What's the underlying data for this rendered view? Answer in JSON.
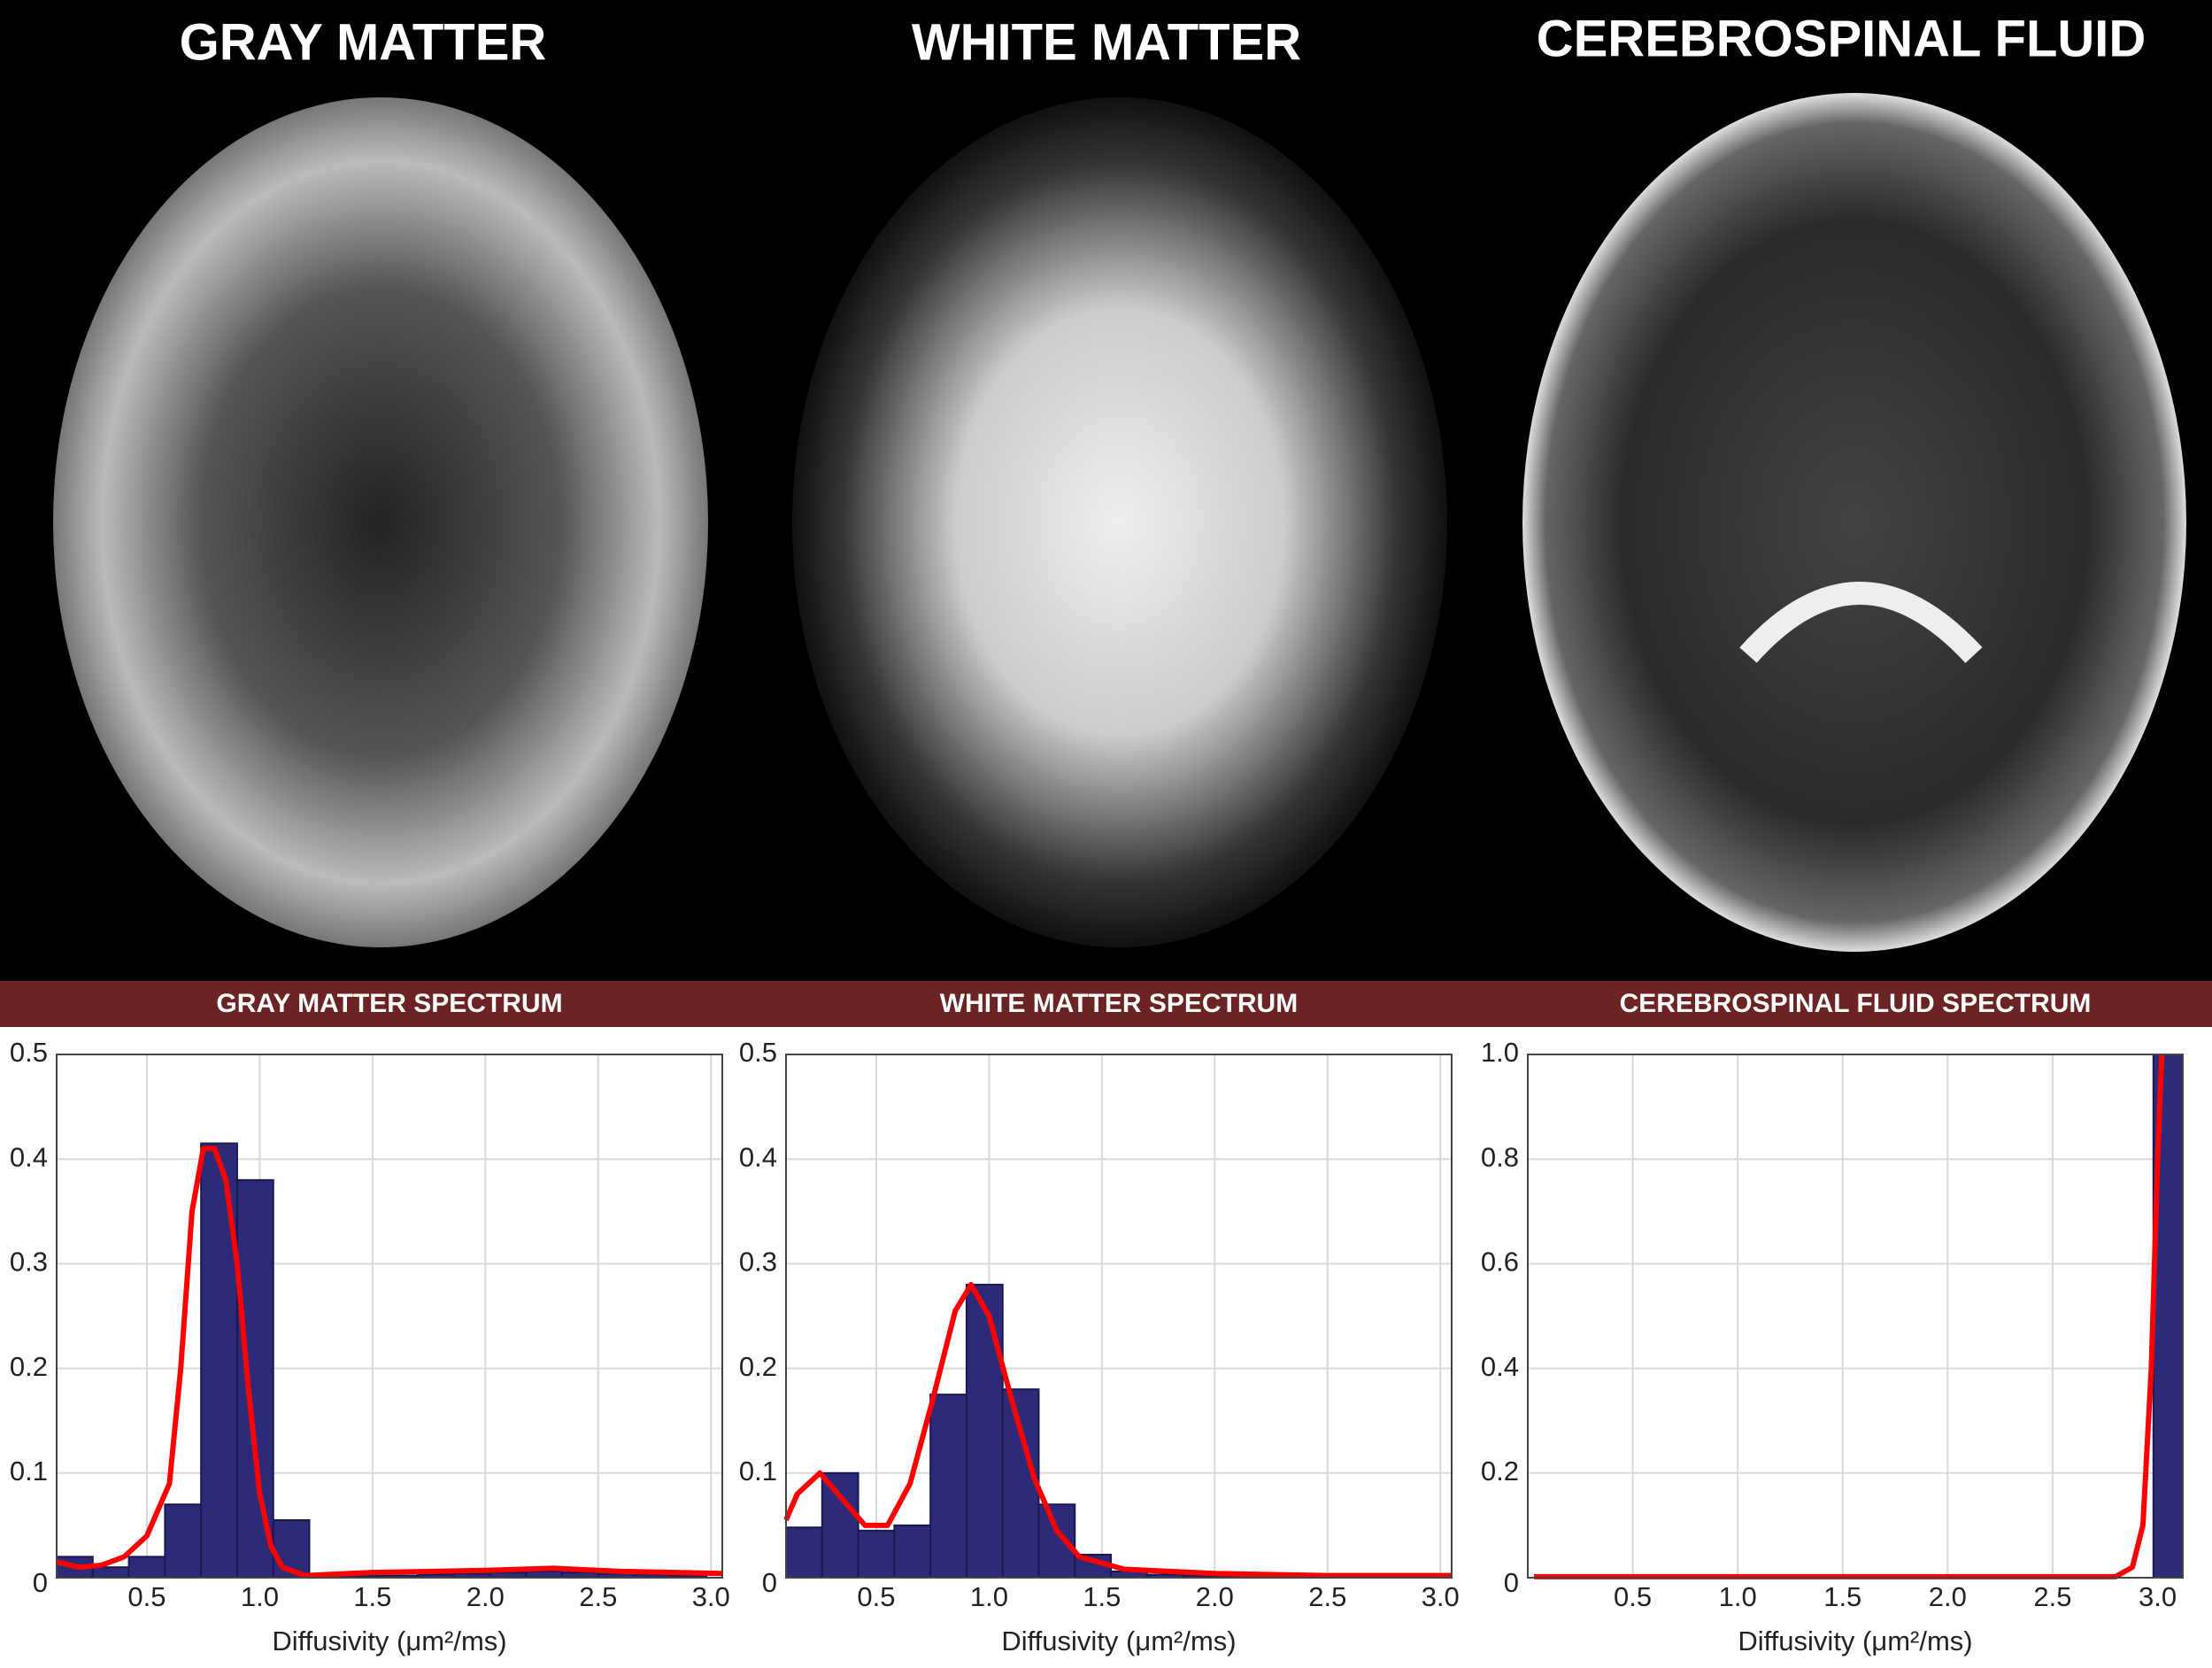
{
  "panels": [
    {
      "title": "GRAY MATTER"
    },
    {
      "title": "WHITE MATTER"
    },
    {
      "title": "CEREBROSPINAL FLUID"
    }
  ],
  "chart_data": [
    {
      "type": "histogram",
      "title": "GRAY MATTER SPECTRUM",
      "xlabel": "Diffusivity (μm²/ms)",
      "bins": [
        0.1,
        0.26,
        0.42,
        0.58,
        0.74,
        0.9,
        1.06,
        1.22,
        1.38,
        1.54,
        1.7,
        1.86,
        2.02,
        2.18,
        2.34,
        2.5,
        2.66,
        2.82,
        2.98
      ],
      "values": [
        0.02,
        0.01,
        0.02,
        0.07,
        0.415,
        0.38,
        0.055,
        0.002,
        0.002,
        0.002,
        0.003,
        0.004,
        0.005,
        0.006,
        0.005,
        0.004,
        0.003,
        0.002
      ],
      "color": "#2e2a7a",
      "line": {
        "color": "#ff0000",
        "x": [
          0.1,
          0.2,
          0.3,
          0.4,
          0.5,
          0.6,
          0.65,
          0.7,
          0.75,
          0.8,
          0.85,
          0.9,
          0.95,
          1.0,
          1.05,
          1.1,
          1.2,
          1.5,
          2.0,
          2.3,
          2.6,
          3.05
        ],
        "y": [
          0.015,
          0.01,
          0.012,
          0.02,
          0.04,
          0.09,
          0.2,
          0.35,
          0.41,
          0.41,
          0.38,
          0.3,
          0.18,
          0.08,
          0.03,
          0.01,
          0.002,
          0.005,
          0.007,
          0.009,
          0.006,
          0.004
        ]
      },
      "xlim": [
        0.1,
        3.05
      ],
      "ylim": [
        0,
        0.5
      ],
      "xticks": [
        0.5,
        {
          "value": 1,
          "label": "1.0"
        },
        1.5,
        {
          "value": 2,
          "label": "2.0"
        },
        2.5,
        {
          "value": 3,
          "label": "3.0"
        }
      ],
      "yticks": [
        0,
        0.1,
        0.2,
        0.3,
        0.4,
        0.5
      ],
      "grid": true
    },
    {
      "type": "histogram",
      "title": "WHITE MATTER SPECTRUM",
      "xlabel": "Diffusivity (μm²/ms)",
      "bins": [
        0.1,
        0.26,
        0.42,
        0.58,
        0.74,
        0.9,
        1.06,
        1.22,
        1.38,
        1.54,
        1.7,
        1.86,
        2.02,
        2.18,
        2.34,
        2.5,
        2.66,
        2.82,
        2.98
      ],
      "values": [
        0.048,
        0.1,
        0.045,
        0.05,
        0.175,
        0.28,
        0.18,
        0.07,
        0.022,
        0.006,
        0.003,
        0.002,
        0.002,
        0.001,
        0.001,
        0.001,
        0.001,
        0.001
      ],
      "color": "#2e2a7a",
      "line": {
        "color": "#ff0000",
        "x": [
          0.1,
          0.15,
          0.25,
          0.35,
          0.45,
          0.55,
          0.65,
          0.75,
          0.85,
          0.92,
          1.0,
          1.1,
          1.2,
          1.3,
          1.4,
          1.6,
          2.0,
          2.5,
          3.05
        ],
        "y": [
          0.055,
          0.08,
          0.1,
          0.075,
          0.05,
          0.05,
          0.09,
          0.17,
          0.255,
          0.28,
          0.25,
          0.17,
          0.095,
          0.045,
          0.02,
          0.008,
          0.004,
          0.002,
          0.002
        ]
      },
      "xlim": [
        0.1,
        3.05
      ],
      "ylim": [
        0,
        0.5
      ],
      "xticks": [
        0.5,
        {
          "value": 1,
          "label": "1.0"
        },
        1.5,
        {
          "value": 2,
          "label": "2.0"
        },
        2.5,
        {
          "value": 3,
          "label": "3.0"
        }
      ],
      "yticks": [
        0,
        0.1,
        0.2,
        0.3,
        0.4,
        0.5
      ],
      "grid": true
    },
    {
      "type": "histogram",
      "title": "CEREBROSPINAL FLUID SPECTRUM",
      "xlabel": "Diffusivity (μm²/ms)",
      "bins": [
        2.98,
        3.12
      ],
      "values": [
        1
      ],
      "color": "#2e2a7a",
      "line": {
        "color": "#ff0000",
        "x": [
          0.03,
          2.8,
          2.88,
          2.93,
          2.97,
          3.0,
          3.02
        ],
        "y": [
          0.002,
          0.002,
          0.02,
          0.1,
          0.4,
          0.8,
          1
        ]
      },
      "xlim": [
        0,
        3.12
      ],
      "ylim": [
        0,
        1
      ],
      "xticks": [
        0.5,
        {
          "value": 1,
          "label": "1.0"
        },
        1.5,
        {
          "value": 2,
          "label": "2.0"
        },
        2.5,
        {
          "value": 3,
          "label": "3.0"
        }
      ],
      "yticks": [
        0,
        0.2,
        0.4,
        0.6,
        0.8,
        {
          "value": 1,
          "label": "1.0"
        }
      ],
      "grid": true
    }
  ]
}
